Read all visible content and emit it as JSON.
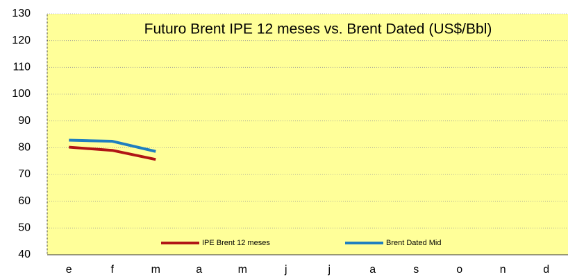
{
  "chart_data": {
    "type": "line",
    "title": "Futuro Brent IPE 12 meses vs. Brent Dated (US$/Bbl)",
    "categories": [
      "e",
      "f",
      "m",
      "a",
      "m",
      "j",
      "j",
      "a",
      "s",
      "o",
      "n",
      "d"
    ],
    "series": [
      {
        "name": "IPE Brent 12 meses",
        "color": "#b01515",
        "values": [
          80.2,
          79,
          75.6,
          null,
          null,
          null,
          null,
          null,
          null,
          null,
          null,
          null
        ]
      },
      {
        "name": "Brent Dated Mid",
        "color": "#1f7fbf",
        "values": [
          82.8,
          82.4,
          78.6,
          null,
          null,
          null,
          null,
          null,
          null,
          null,
          null,
          null
        ]
      }
    ],
    "ylim": [
      40,
      130
    ],
    "yticks": [
      40,
      50,
      60,
      70,
      80,
      90,
      100,
      110,
      120,
      130
    ],
    "grid": true,
    "legend": "bottom",
    "background": "#ffff99"
  }
}
